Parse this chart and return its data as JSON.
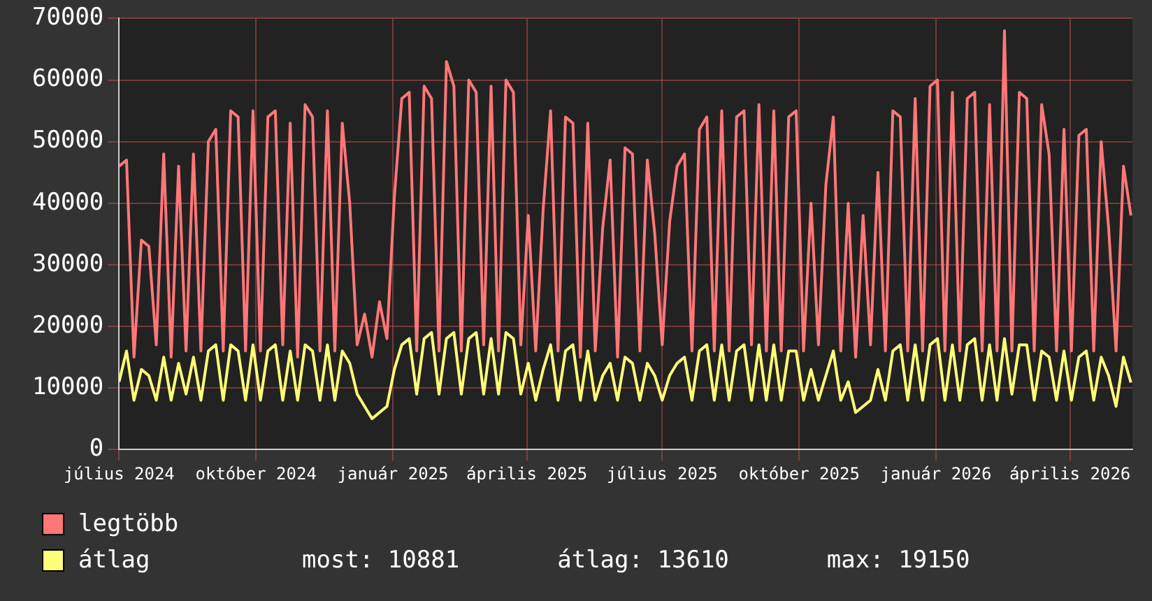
{
  "chart_data": {
    "type": "line",
    "x": [
      "2024-07-01",
      "2024-07-06",
      "2024-07-11",
      "2024-07-16",
      "2024-07-21",
      "2024-07-26",
      "2024-07-31",
      "2024-08-05",
      "2024-08-10",
      "2024-08-15",
      "2024-08-20",
      "2024-08-25",
      "2024-08-30",
      "2024-09-04",
      "2024-09-09",
      "2024-09-14",
      "2024-09-19",
      "2024-09-24",
      "2024-09-29",
      "2024-10-04",
      "2024-10-09",
      "2024-10-14",
      "2024-10-19",
      "2024-10-24",
      "2024-10-29",
      "2024-11-03",
      "2024-11-08",
      "2024-11-13",
      "2024-11-18",
      "2024-11-23",
      "2024-11-28",
      "2024-12-03",
      "2024-12-08",
      "2024-12-13",
      "2024-12-18",
      "2024-12-23",
      "2024-12-28",
      "2025-01-02",
      "2025-01-07",
      "2025-01-12",
      "2025-01-17",
      "2025-01-22",
      "2025-01-27",
      "2025-02-01",
      "2025-02-06",
      "2025-02-11",
      "2025-02-16",
      "2025-02-21",
      "2025-02-26",
      "2025-03-03",
      "2025-03-08",
      "2025-03-13",
      "2025-03-18",
      "2025-03-23",
      "2025-03-28",
      "2025-04-02",
      "2025-04-07",
      "2025-04-12",
      "2025-04-17",
      "2025-04-22",
      "2025-04-27",
      "2025-05-02",
      "2025-05-07",
      "2025-05-12",
      "2025-05-17",
      "2025-05-22",
      "2025-05-27",
      "2025-06-01",
      "2025-06-06",
      "2025-06-11",
      "2025-06-16",
      "2025-06-21",
      "2025-06-26",
      "2025-07-01",
      "2025-07-06",
      "2025-07-11",
      "2025-07-16",
      "2025-07-21",
      "2025-07-26",
      "2025-07-31",
      "2025-08-05",
      "2025-08-10",
      "2025-08-15",
      "2025-08-20",
      "2025-08-25",
      "2025-08-30",
      "2025-09-04",
      "2025-09-09",
      "2025-09-14",
      "2025-09-19",
      "2025-09-24",
      "2025-09-29",
      "2025-10-04",
      "2025-10-09",
      "2025-10-14",
      "2025-10-19",
      "2025-10-24",
      "2025-10-29",
      "2025-11-03",
      "2025-11-08",
      "2025-11-13",
      "2025-11-18",
      "2025-11-23",
      "2025-11-28",
      "2025-12-03",
      "2025-12-08",
      "2025-12-13",
      "2025-12-18",
      "2025-12-23",
      "2025-12-28",
      "2026-01-02",
      "2026-01-07",
      "2026-01-12",
      "2026-01-17",
      "2026-01-22",
      "2026-01-27",
      "2026-02-01",
      "2026-02-06",
      "2026-02-11",
      "2026-02-16",
      "2026-02-21",
      "2026-02-26",
      "2026-03-03",
      "2026-03-08",
      "2026-03-13",
      "2026-03-18",
      "2026-03-23",
      "2026-03-28",
      "2026-04-02",
      "2026-04-07",
      "2026-04-12",
      "2026-04-17",
      "2026-04-22",
      "2026-04-27",
      "2026-05-02",
      "2026-05-07",
      "2026-05-12"
    ],
    "series": [
      {
        "name": "legtöbb",
        "color": "#ff7777",
        "values": [
          46000,
          47000,
          15000,
          34000,
          33000,
          17000,
          48000,
          15000,
          46000,
          16000,
          48000,
          16000,
          50000,
          52000,
          16000,
          55000,
          54000,
          16000,
          55000,
          16000,
          54000,
          55000,
          17000,
          53000,
          15000,
          56000,
          54000,
          16000,
          55000,
          16000,
          53000,
          40000,
          17000,
          22000,
          15000,
          24000,
          18000,
          41000,
          57000,
          58000,
          16000,
          59000,
          57000,
          16000,
          63000,
          59000,
          16000,
          60000,
          58000,
          17000,
          59000,
          16000,
          60000,
          58000,
          17000,
          38000,
          16000,
          39000,
          55000,
          16000,
          54000,
          53000,
          15000,
          53000,
          16000,
          36000,
          47000,
          15000,
          49000,
          48000,
          16000,
          47000,
          35000,
          17000,
          37000,
          46000,
          48000,
          16000,
          52000,
          54000,
          16000,
          55000,
          16000,
          54000,
          55000,
          17000,
          56000,
          16000,
          55000,
          16000,
          54000,
          55000,
          16000,
          40000,
          17000,
          43000,
          54000,
          16000,
          40000,
          15000,
          38000,
          17000,
          45000,
          16000,
          55000,
          54000,
          16000,
          57000,
          16000,
          59000,
          60000,
          16000,
          58000,
          16000,
          57000,
          58000,
          16000,
          56000,
          16000,
          68000,
          16000,
          58000,
          57000,
          16000,
          56000,
          48000,
          16000,
          52000,
          16000,
          51000,
          52000,
          16000,
          50000,
          36000,
          16000,
          46000,
          38000
        ]
      },
      {
        "name": "átlag",
        "color": "#ffff77",
        "values": [
          11000,
          16000,
          8000,
          13000,
          12000,
          8000,
          15000,
          8000,
          14000,
          9000,
          15000,
          8000,
          16000,
          17000,
          8000,
          17000,
          16000,
          8000,
          17000,
          8000,
          16000,
          17000,
          8000,
          16000,
          8000,
          17000,
          16000,
          8000,
          17000,
          8000,
          16000,
          14000,
          9000,
          7000,
          5000,
          6000,
          7000,
          13000,
          17000,
          18000,
          9000,
          18000,
          19000,
          9000,
          18000,
          19000,
          9000,
          18000,
          19000,
          9000,
          18000,
          9000,
          19000,
          18000,
          9000,
          14000,
          8000,
          13000,
          17000,
          8000,
          16000,
          17000,
          8000,
          16000,
          8000,
          12000,
          14000,
          8000,
          15000,
          14000,
          8000,
          14000,
          12000,
          8000,
          12000,
          14000,
          15000,
          8000,
          16000,
          17000,
          8000,
          17000,
          8000,
          16000,
          17000,
          8000,
          17000,
          8000,
          17000,
          8000,
          16000,
          16000,
          8000,
          13000,
          8000,
          12000,
          16000,
          8000,
          11000,
          6000,
          7000,
          8000,
          13000,
          8000,
          16000,
          17000,
          8000,
          17000,
          8000,
          17000,
          18000,
          8000,
          17000,
          8000,
          17000,
          18000,
          8000,
          17000,
          8000,
          18000,
          9000,
          17000,
          17000,
          8000,
          16000,
          15000,
          8000,
          16000,
          8000,
          15000,
          16000,
          8000,
          15000,
          12000,
          7000,
          15000,
          10881
        ]
      }
    ],
    "xlim": [
      "2024-07-01",
      "2026-05-13"
    ],
    "xticks": [
      {
        "value": "2024-07-01",
        "label": "július 2024"
      },
      {
        "value": "2024-10-01",
        "label": "október 2024"
      },
      {
        "value": "2025-01-01",
        "label": "január 2025"
      },
      {
        "value": "2025-04-01",
        "label": "április 2025"
      },
      {
        "value": "2025-07-01",
        "label": "július 2025"
      },
      {
        "value": "2025-10-01",
        "label": "október 2025"
      },
      {
        "value": "2026-01-01",
        "label": "január 2026"
      },
      {
        "value": "2026-04-01",
        "label": "április 2026"
      }
    ],
    "ylim": [
      0,
      70000
    ],
    "yticks": [
      0,
      10000,
      20000,
      30000,
      40000,
      50000,
      60000,
      70000
    ],
    "grid": true,
    "legend": "bottom",
    "marker": "none",
    "line_style": "solid",
    "annotations": [
      "most: 10881",
      "átlag: 13610",
      "max: 19150"
    ]
  }
}
